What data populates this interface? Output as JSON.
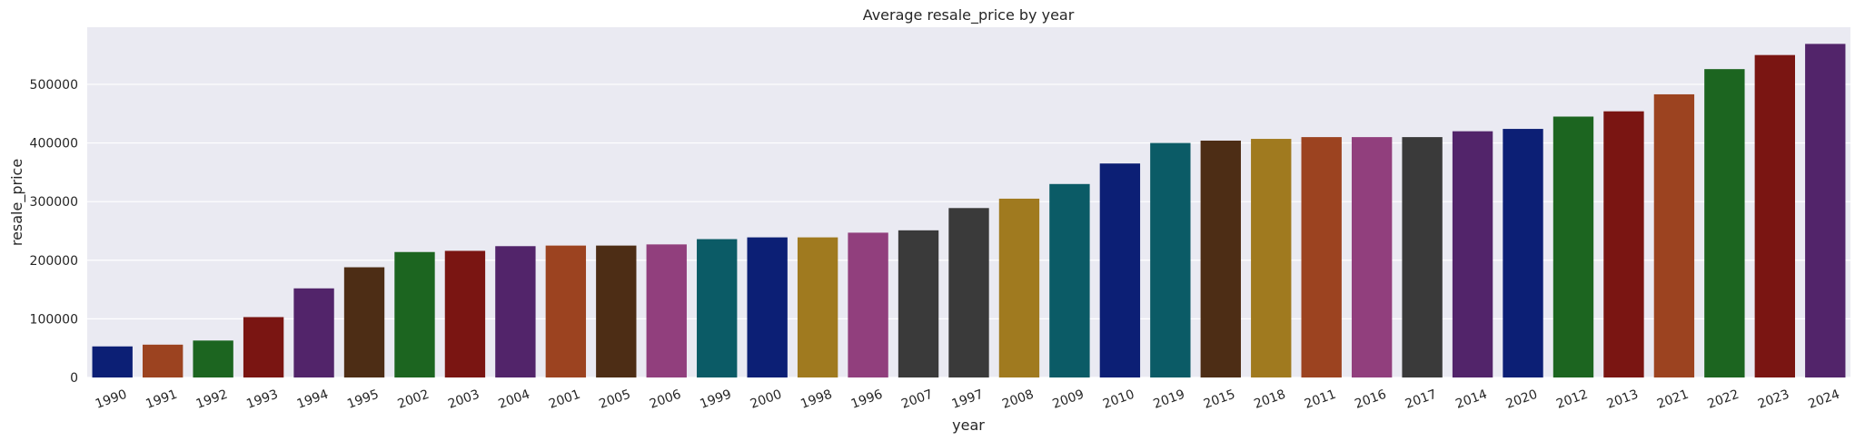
{
  "chart_data": {
    "type": "bar",
    "title": "Average resale_price by year",
    "xlabel": "year",
    "ylabel": "resale_price",
    "categories": [
      "1990",
      "1991",
      "1992",
      "1993",
      "1994",
      "1995",
      "2002",
      "2003",
      "2004",
      "2001",
      "2005",
      "2006",
      "1999",
      "2000",
      "1998",
      "1996",
      "2007",
      "1997",
      "2008",
      "2009",
      "2010",
      "2019",
      "2015",
      "2018",
      "2011",
      "2016",
      "2017",
      "2014",
      "2020",
      "2012",
      "2013",
      "2021",
      "2022",
      "2023",
      "2024"
    ],
    "values": [
      53000,
      56000,
      63000,
      103000,
      152000,
      188000,
      214000,
      216000,
      224000,
      225000,
      225000,
      227000,
      236000,
      239000,
      239000,
      247000,
      251000,
      289000,
      305000,
      330000,
      365000,
      400000,
      404000,
      407000,
      410000,
      410000,
      410000,
      420000,
      424000,
      445000,
      454000,
      483000,
      526000,
      550000,
      569000
    ],
    "colors": [
      "#0c1f75",
      "#9c4320",
      "#1c6520",
      "#7a1512",
      "#52246a",
      "#4d2d15",
      "#1c6520",
      "#7a1512",
      "#52246a",
      "#9c4320",
      "#4d2d15",
      "#913f7d",
      "#0b5b66",
      "#0c1f75",
      "#a07a1f",
      "#913f7d",
      "#3a3a3a",
      "#3a3a3a",
      "#a07a1f",
      "#0b5b66",
      "#0c1f75",
      "#0b5b66",
      "#4d2d15",
      "#a07a1f",
      "#9c4320",
      "#913f7d",
      "#3a3a3a",
      "#52246a",
      "#0c1f75",
      "#1c6520",
      "#7a1512",
      "#9c4320",
      "#1c6520",
      "#7a1512",
      "#52246a"
    ],
    "yticks": [
      0,
      100000,
      200000,
      300000,
      400000,
      500000
    ],
    "ylim": [
      0,
      597450
    ],
    "background": "#eaeaf2",
    "grid": true,
    "legend": "none"
  }
}
